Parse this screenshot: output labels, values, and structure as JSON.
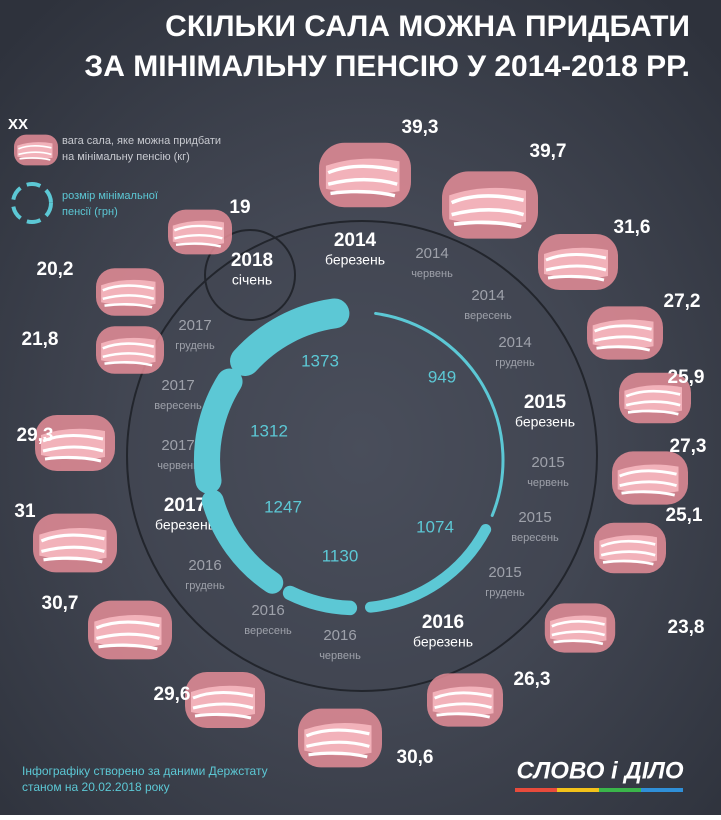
{
  "title": [
    "СКІЛЬКИ САЛА МОЖНА ПРИДБАТИ",
    "ЗА МІНІМАЛЬНУ ПЕНСІЮ У 2014-2018 РР."
  ],
  "legend": {
    "weight_symbol": "ХХ",
    "weight_text": [
      "вага сала, яке можна придбати",
      "на мінімальну пенсію (кг)"
    ],
    "pension_text": [
      "розмір мінімальної",
      "пенсії (грн)"
    ]
  },
  "periods": [
    {
      "year": "2014",
      "month": "березень",
      "weight": "39,3"
    },
    {
      "year": "2014",
      "month": "червень",
      "weight": "39,7"
    },
    {
      "year": "2014",
      "month": "вересень",
      "weight": "31,6"
    },
    {
      "year": "2014",
      "month": "грудень",
      "weight": "27,2"
    },
    {
      "year": "2015",
      "month": "березень",
      "weight": "25,9"
    },
    {
      "year": "2015",
      "month": "червень",
      "weight": "27,3"
    },
    {
      "year": "2015",
      "month": "вересень",
      "weight": "25,1"
    },
    {
      "year": "2015",
      "month": "грудень",
      "weight": "23,8"
    },
    {
      "year": "2016",
      "month": "березень",
      "weight": "26,3"
    },
    {
      "year": "2016",
      "month": "червень",
      "weight": "30,6"
    },
    {
      "year": "2016",
      "month": "вересень",
      "weight": "29,6"
    },
    {
      "year": "2016",
      "month": "грудень",
      "weight": "30,7"
    },
    {
      "year": "2017",
      "month": "березень",
      "weight": "31"
    },
    {
      "year": "2017",
      "month": "червень",
      "weight": "29,3"
    },
    {
      "year": "2017",
      "month": "вересень",
      "weight": "21,8"
    },
    {
      "year": "2017",
      "month": "грудень",
      "weight": "20,2"
    },
    {
      "year": "2018",
      "month": "січень",
      "weight": "19"
    }
  ],
  "pension": [
    949,
    1074,
    1130,
    1247,
    1312,
    1373
  ],
  "footer": {
    "source": [
      "Інфографіку створено за даними Держстату",
      "станом на 20.02.2018 року"
    ],
    "logo": "СЛОВО і ДІЛО"
  }
}
